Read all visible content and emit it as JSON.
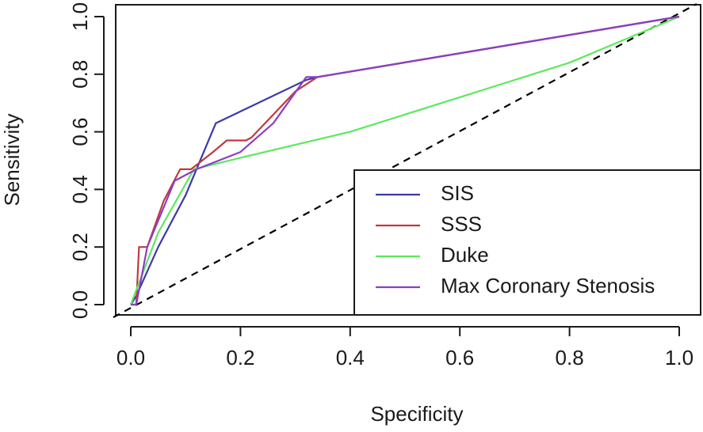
{
  "chart_data": {
    "type": "line",
    "title": "",
    "xlabel": "Specificity",
    "ylabel": "Sensitivity",
    "xlim": [
      0,
      1
    ],
    "ylim": [
      0,
      1
    ],
    "x_ticks": [
      "0.0",
      "0.2",
      "0.4",
      "0.6",
      "0.8",
      "1.0"
    ],
    "y_ticks": [
      "0.0",
      "0.2",
      "0.4",
      "0.6",
      "0.8",
      "1.0"
    ],
    "grid": false,
    "legend_position": "bottom-right",
    "reference_line": {
      "style": "dashed",
      "color": "#000000",
      "x": [
        0,
        1
      ],
      "y": [
        0,
        1
      ]
    },
    "series": [
      {
        "name": "SIS",
        "color": "#3a3aa8",
        "x": [
          0.0,
          0.01,
          0.05,
          0.1,
          0.155,
          0.32,
          0.34,
          1.0
        ],
        "y": [
          0.0,
          0.03,
          0.2,
          0.38,
          0.63,
          0.78,
          0.79,
          1.0
        ]
      },
      {
        "name": "SSS",
        "color": "#c0393f",
        "x": [
          0.0,
          0.01,
          0.015,
          0.025,
          0.03,
          0.06,
          0.09,
          0.11,
          0.15,
          0.175,
          0.21,
          0.22,
          0.3,
          0.34,
          1.0
        ],
        "y": [
          0.0,
          0.0,
          0.2,
          0.2,
          0.2,
          0.36,
          0.47,
          0.47,
          0.53,
          0.57,
          0.57,
          0.58,
          0.74,
          0.79,
          1.0
        ]
      },
      {
        "name": "Duke",
        "color": "#5de85d",
        "x": [
          0.0,
          0.01,
          0.05,
          0.115,
          0.2,
          0.4,
          0.6,
          0.8,
          1.0
        ],
        "y": [
          0.0,
          0.05,
          0.25,
          0.47,
          0.51,
          0.6,
          0.72,
          0.84,
          1.0
        ]
      },
      {
        "name": "Max Coronary Stenosis",
        "color": "#8a3fc0",
        "x": [
          0.0,
          0.01,
          0.03,
          0.08,
          0.12,
          0.2,
          0.26,
          0.32,
          0.34,
          1.0
        ],
        "y": [
          0.0,
          0.0,
          0.2,
          0.43,
          0.47,
          0.53,
          0.63,
          0.79,
          0.79,
          1.0
        ]
      }
    ]
  }
}
